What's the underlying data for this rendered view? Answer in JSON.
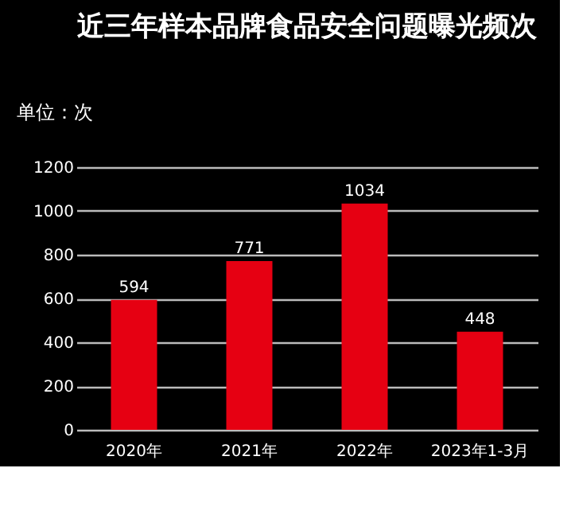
{
  "chart_data": {
    "type": "bar",
    "title": "近三年样本品牌食品安全问题曝光频次",
    "ylabel": "单位：次",
    "categories": [
      "2020年",
      "2021年",
      "2022年",
      "2023年1-3月"
    ],
    "values": [
      594,
      771,
      1034,
      448
    ],
    "color": "#e60012",
    "ylim": [
      0,
      1200
    ],
    "yticks": [
      0,
      200,
      400,
      600,
      800,
      1000,
      1200
    ],
    "grid": "y",
    "data_labels": true
  }
}
